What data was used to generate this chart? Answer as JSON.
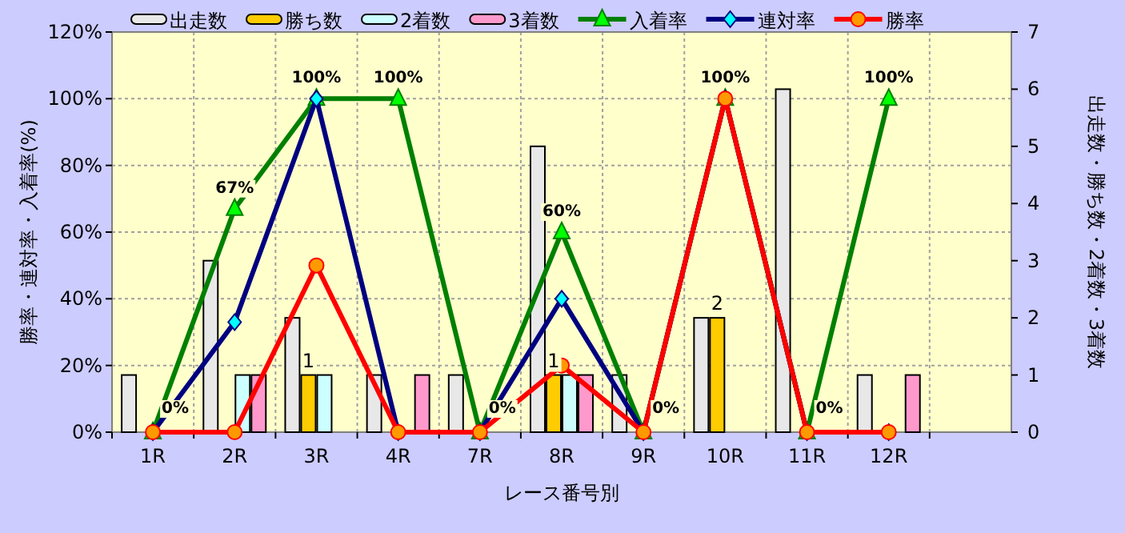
{
  "chart_data": {
    "type": "bar",
    "xlabel": "レース番号別",
    "ylabel": "勝率・連対率・入着率(%)",
    "y2label": "出走数・勝ち数・2着数・3着数",
    "categories": [
      "1R",
      "2R",
      "3R",
      "4R",
      "7R",
      "8R",
      "9R",
      "10R",
      "11R",
      "12R",
      null
    ],
    "ylim": [
      0,
      120
    ],
    "yticks": [
      {
        "value": 0,
        "label": "0%"
      },
      {
        "value": 20,
        "label": "20%"
      },
      {
        "value": 40,
        "label": "40%"
      },
      {
        "value": 60,
        "label": "60%"
      },
      {
        "value": 80,
        "label": "80%"
      },
      {
        "value": 100,
        "label": "100%"
      },
      {
        "value": 120,
        "label": "120%"
      }
    ],
    "y2lim": [
      0,
      7
    ],
    "y2ticks": [
      0,
      1,
      2,
      3,
      4,
      5,
      6,
      7
    ],
    "grid": true,
    "legend": "top",
    "series": [
      {
        "name": "出走数",
        "axis": "y2",
        "color": "#e8e8e8",
        "values": [
          1,
          3,
          2,
          1,
          1,
          5,
          1,
          2,
          6,
          1,
          null
        ]
      },
      {
        "name": "勝ち数",
        "axis": "y2",
        "color": "#ffcc00",
        "values": [
          0,
          0,
          1,
          0,
          0,
          1,
          0,
          2,
          0,
          0,
          null
        ],
        "value_labels": [
          null,
          null,
          "1",
          null,
          null,
          "1",
          null,
          "2",
          null,
          null,
          null
        ]
      },
      {
        "name": "2着数",
        "axis": "y2",
        "color": "#ccffff",
        "values": [
          0,
          1,
          1,
          0,
          0,
          1,
          0,
          0,
          0,
          0,
          null
        ]
      },
      {
        "name": "3着数",
        "axis": "y2",
        "color": "#ff99cc",
        "values": [
          0,
          1,
          0,
          1,
          0,
          1,
          0,
          0,
          0,
          1,
          null
        ]
      },
      {
        "name": "入着率",
        "type": "line",
        "color": "#008000",
        "marker": "triangle",
        "values": [
          0,
          67,
          100,
          100,
          0,
          60,
          0,
          100,
          0,
          100,
          null
        ],
        "value_labels": [
          "0%",
          "67%",
          "100%",
          "100%",
          "0%",
          "60%",
          "0%",
          "100%",
          "0%",
          "100%",
          null
        ]
      },
      {
        "name": "連対率",
        "type": "line",
        "color": "#000080",
        "marker": "diamond",
        "values": [
          0,
          33,
          100,
          0,
          0,
          40,
          0,
          100,
          0,
          0,
          null
        ]
      },
      {
        "name": "勝率",
        "type": "line",
        "color": "#ff0000",
        "marker": "circle",
        "values": [
          0,
          0,
          50,
          0,
          0,
          20,
          0,
          100,
          0,
          0,
          null
        ]
      }
    ]
  }
}
